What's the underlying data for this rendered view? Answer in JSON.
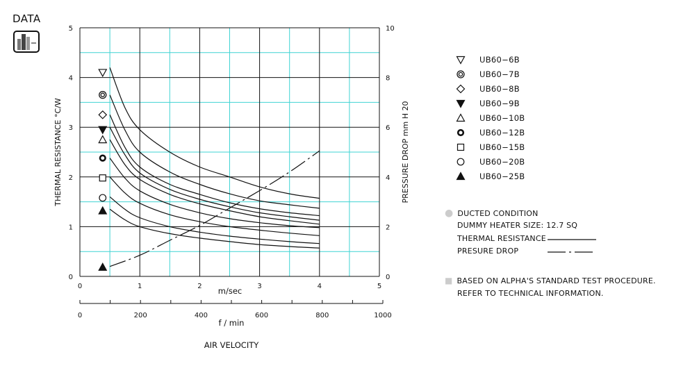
{
  "logo": {
    "text": "DATA",
    "icon": "bar-chart-icon"
  },
  "chart_data": {
    "type": "line",
    "xlabel": "AIR VELOCITY",
    "x_primary": {
      "unit_label": "m/sec",
      "range": [
        0,
        5
      ],
      "ticks": [
        "0",
        "1",
        "2",
        "3",
        "4",
        "5"
      ]
    },
    "x_secondary": {
      "unit_label": "f / min",
      "range": [
        0,
        1000
      ],
      "ticks": [
        "0",
        "200",
        "400",
        "600",
        "800",
        "1000"
      ]
    },
    "y_left": {
      "label": "THERMAL  RESISTANCE   °C/W",
      "range": [
        0,
        5
      ],
      "ticks": [
        "0",
        "1",
        "2",
        "3",
        "4",
        "5"
      ]
    },
    "y_right": {
      "label": "PRESSURE  DROP    mm H 20",
      "range": [
        0,
        10
      ],
      "ticks": [
        "0",
        "2",
        "4",
        "6",
        "8",
        "10"
      ]
    },
    "grid": true,
    "series": [
      {
        "name": "UB60−6B",
        "marker": "triangle-down-open",
        "marker_y": 4.1,
        "x": [
          0.5,
          0.75,
          1,
          1.5,
          2,
          2.5,
          3,
          3.5,
          4
        ],
        "y": [
          4.2,
          3.4,
          2.95,
          2.5,
          2.2,
          2.0,
          1.8,
          1.66,
          1.57
        ]
      },
      {
        "name": "UB60−7B",
        "marker": "double-circle",
        "marker_y": 3.65,
        "x": [
          0.5,
          0.75,
          1,
          1.5,
          2,
          2.5,
          3,
          3.5,
          4
        ],
        "y": [
          3.65,
          2.95,
          2.5,
          2.1,
          1.85,
          1.66,
          1.52,
          1.44,
          1.37
        ]
      },
      {
        "name": "UB60−8B",
        "marker": "diamond-open",
        "marker_y": 3.25,
        "x": [
          0.5,
          0.75,
          1,
          1.5,
          2,
          2.5,
          3,
          3.5,
          4
        ],
        "y": [
          3.25,
          2.6,
          2.2,
          1.85,
          1.65,
          1.48,
          1.36,
          1.28,
          1.22
        ]
      },
      {
        "name": "UB60−9B",
        "marker": "triangle-down-filled",
        "marker_y": 2.95,
        "x": [
          0.5,
          0.75,
          1,
          1.5,
          2,
          2.5,
          3,
          3.5,
          4
        ],
        "y": [
          3.0,
          2.45,
          2.08,
          1.75,
          1.55,
          1.4,
          1.28,
          1.2,
          1.13
        ]
      },
      {
        "name": "UB60−10B",
        "marker": "triangle-up-open",
        "marker_y": 2.75,
        "x": [
          0.5,
          0.75,
          1,
          1.5,
          2,
          2.5,
          3,
          3.5,
          4
        ],
        "y": [
          2.75,
          2.25,
          1.95,
          1.65,
          1.46,
          1.32,
          1.2,
          1.12,
          1.05
        ]
      },
      {
        "name": "UB60−12B",
        "marker": "bold-circle",
        "marker_y": 2.38,
        "x": [
          0.5,
          0.75,
          1,
          1.5,
          2,
          2.5,
          3,
          3.5,
          4
        ],
        "y": [
          2.38,
          1.98,
          1.72,
          1.45,
          1.28,
          1.16,
          1.08,
          1.02,
          0.98
        ]
      },
      {
        "name": "UB60−15B",
        "marker": "square-open",
        "marker_y": 1.98,
        "x": [
          0.5,
          0.75,
          1,
          1.5,
          2,
          2.5,
          3,
          3.5,
          4
        ],
        "y": [
          2.0,
          1.68,
          1.47,
          1.24,
          1.1,
          1.0,
          0.93,
          0.87,
          0.82
        ]
      },
      {
        "name": "UB60−20B",
        "marker": "circle-open",
        "marker_y": 1.58,
        "x": [
          0.5,
          0.75,
          1,
          1.5,
          2,
          2.5,
          3,
          3.5,
          4
        ],
        "y": [
          1.6,
          1.35,
          1.18,
          1.0,
          0.89,
          0.81,
          0.75,
          0.7,
          0.66
        ]
      },
      {
        "name": "UB60−25B",
        "marker": "triangle-up-filled",
        "marker_y": 1.32,
        "x": [
          0.5,
          0.75,
          1,
          1.5,
          2,
          2.5,
          3,
          3.5,
          4
        ],
        "y": [
          1.35,
          1.14,
          1.0,
          0.86,
          0.77,
          0.7,
          0.64,
          0.6,
          0.57
        ]
      }
    ],
    "pressure_drop": {
      "style": "dash-dot",
      "start_marker": "triangle-up-filled",
      "start_marker_point": [
        0.38,
        0.37
      ],
      "x": [
        0.5,
        1,
        1.5,
        2,
        2.5,
        3,
        3.5,
        4
      ],
      "y_right": [
        0.4,
        0.85,
        1.45,
        2.05,
        2.75,
        3.45,
        4.2,
        5.05
      ]
    }
  },
  "notes": {
    "ducted_bullet": "●",
    "ducted": "DUCTED CONDITION",
    "heater": "DUMMY HEATER SIZE: 12.7 SQ",
    "thermal": "THERMAL RESISTANCE",
    "pressure": "PRESURE DROP",
    "standard_bullet": "■",
    "standard_1": "BASED ON ALPHA'S STANDARD TEST PROCEDURE.",
    "standard_2": "REFER TO TECHNICAL INFORMATION."
  },
  "colors": {
    "grid_major": "#111111",
    "grid_minor": "#3fd3d3",
    "bullet": "#cccccc"
  }
}
